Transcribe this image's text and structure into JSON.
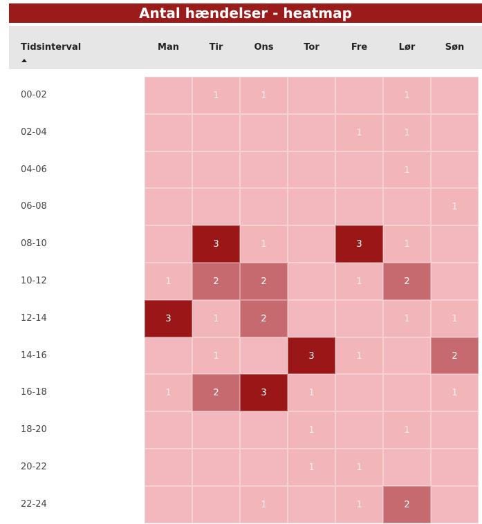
{
  "title": "Antal hændelser - heatmap",
  "table": {
    "row_header": "Tidsinterval",
    "columns": [
      "Man",
      "Tir",
      "Ons",
      "Tor",
      "Fre",
      "Lør",
      "Søn"
    ],
    "rows": [
      {
        "label": "00-02",
        "cells": [
          null,
          1,
          1,
          null,
          null,
          1,
          null
        ]
      },
      {
        "label": "02-04",
        "cells": [
          null,
          null,
          null,
          null,
          1,
          1,
          null
        ]
      },
      {
        "label": "04-06",
        "cells": [
          null,
          null,
          null,
          null,
          null,
          1,
          null
        ]
      },
      {
        "label": "06-08",
        "cells": [
          null,
          null,
          null,
          null,
          null,
          null,
          1
        ]
      },
      {
        "label": "08-10",
        "cells": [
          null,
          3,
          1,
          null,
          3,
          1,
          null
        ]
      },
      {
        "label": "10-12",
        "cells": [
          1,
          2,
          2,
          null,
          1,
          2,
          null
        ]
      },
      {
        "label": "12-14",
        "cells": [
          3,
          1,
          2,
          null,
          null,
          1,
          1
        ]
      },
      {
        "label": "14-16",
        "cells": [
          null,
          1,
          null,
          3,
          1,
          null,
          2
        ]
      },
      {
        "label": "16-18",
        "cells": [
          1,
          2,
          3,
          1,
          null,
          null,
          1
        ]
      },
      {
        "label": "18-20",
        "cells": [
          null,
          null,
          null,
          1,
          null,
          1,
          null
        ]
      },
      {
        "label": "20-22",
        "cells": [
          null,
          null,
          null,
          1,
          1,
          null,
          null
        ]
      },
      {
        "label": "22-24",
        "cells": [
          null,
          null,
          1,
          null,
          1,
          2,
          null
        ]
      }
    ],
    "cell_colors": [
      "#f2b8bd",
      "#f1b5ba",
      "#c76a6f",
      "#9b1616"
    ]
  }
}
